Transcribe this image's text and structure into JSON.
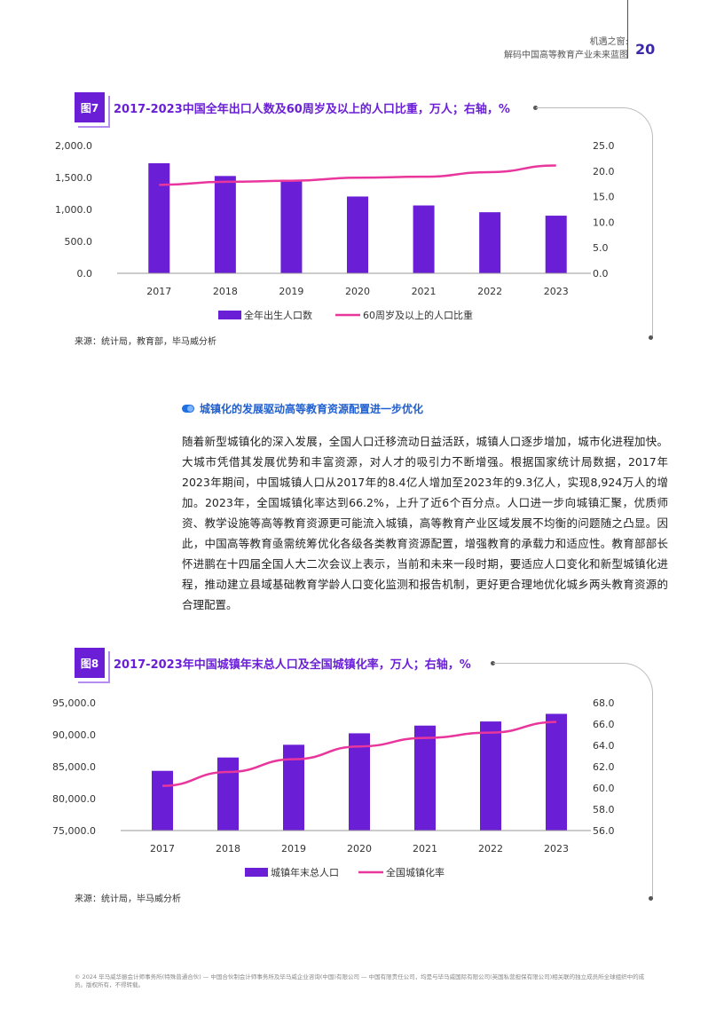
{
  "header": {
    "line1": "机遇之窗:",
    "line2": "解码中国高等教育产业未来蓝图",
    "page": "20"
  },
  "figure7": {
    "tag": "图7",
    "title": "2017-2023中国全年出口人数及60周岁及以上的人口比重，万人；右轴，%",
    "source": "来源：统计局，教育部，毕马威分析"
  },
  "figure8": {
    "tag": "图8",
    "title": "2017-2023年中国城镇年末总人口及全国城镇化率，万人；右轴，%",
    "source": "来源：统计局，毕马威分析"
  },
  "section": {
    "title": "城镇化的发展驱动高等教育资源配置进一步优化",
    "paragraph": "随着新型城镇化的深入发展，全国人口迁移流动日益活跃，城镇人口逐步增加，城市化进程加快。大城市凭借其发展优势和丰富资源，对人才的吸引力不断增强。根据国家统计局数据，2017年2023年期间，中国城镇人口从2017年的8.4亿人增加至2023年的9.3亿人，实现8,924万人的增加。2023年，全国城镇化率达到66.2%，上升了近6个百分点。人口进一步向城镇汇聚，优质师资、教学设施等高等教育资源更可能流入城镇，高等教育产业区域发展不均衡的问题随之凸显。因此，中国高等教育亟需统筹优化各级各类教育资源配置，增强教育的承载力和适应性。教育部部长怀进鹏在十四届全国人大二次会议上表示，当前和未来一段时期，要适应人口变化和新型城镇化进程，推动建立县域基础教育学龄人口变化监测和报告机制，更好更合理地优化城乡两头教育资源的合理配置。"
  },
  "footer": "© 2024 毕马威华振会计师事务所(特殊普通合伙) — 中国合伙制会计师事务所及毕马威企业咨询(中国)有限公司 — 中国有限责任公司，均是与毕马威国际有限公司(英国私营担保有限公司)相关联的独立成员所全球组织中的成员。版权所有，不得转载。",
  "colors": {
    "bar": "#6a1fd6",
    "line": "#e8369c",
    "accent": "#1f5fd0"
  },
  "chart_data": [
    {
      "type": "bar",
      "categories": [
        "2017",
        "2018",
        "2019",
        "2020",
        "2021",
        "2022",
        "2023"
      ],
      "series": [
        {
          "name": "全年出生人口数",
          "type": "bar",
          "axis": "left",
          "values": [
            1723,
            1523,
            1465,
            1202,
            1062,
            956,
            902
          ]
        },
        {
          "name": "60周岁及以上的人口比重",
          "type": "line",
          "axis": "right",
          "values": [
            17.3,
            17.9,
            18.1,
            18.7,
            18.9,
            19.8,
            21.1
          ]
        }
      ],
      "left_ticks": [
        "2,000.0",
        "1,500.0",
        "1,000.0",
        "500.0",
        "0.0"
      ],
      "right_ticks": [
        "25.0",
        "20.0",
        "15.0",
        "10.0",
        "5.0",
        "0.0"
      ],
      "ylim": [
        0,
        2000
      ],
      "y2lim": [
        0,
        25
      ],
      "legend_position": "bottom"
    },
    {
      "type": "bar",
      "categories": [
        "2017",
        "2018",
        "2019",
        "2020",
        "2021",
        "2022",
        "2023"
      ],
      "series": [
        {
          "name": "城镇年末总人口",
          "type": "bar",
          "axis": "left",
          "values": [
            84343,
            86433,
            88426,
            90220,
            91425,
            92071,
            93267
          ]
        },
        {
          "name": "全国城镇化率",
          "type": "line",
          "axis": "right",
          "values": [
            60.2,
            61.5,
            62.7,
            63.9,
            64.7,
            65.2,
            66.2
          ]
        }
      ],
      "left_ticks": [
        "95,000.0",
        "90,000.0",
        "85,000.0",
        "80,000.0",
        "75,000.0"
      ],
      "right_ticks": [
        "68.0",
        "66.0",
        "64.0",
        "62.0",
        "60.0",
        "58.0",
        "56.0"
      ],
      "ylim": [
        75000,
        95000
      ],
      "y2lim": [
        56,
        68
      ],
      "legend_position": "bottom"
    }
  ]
}
